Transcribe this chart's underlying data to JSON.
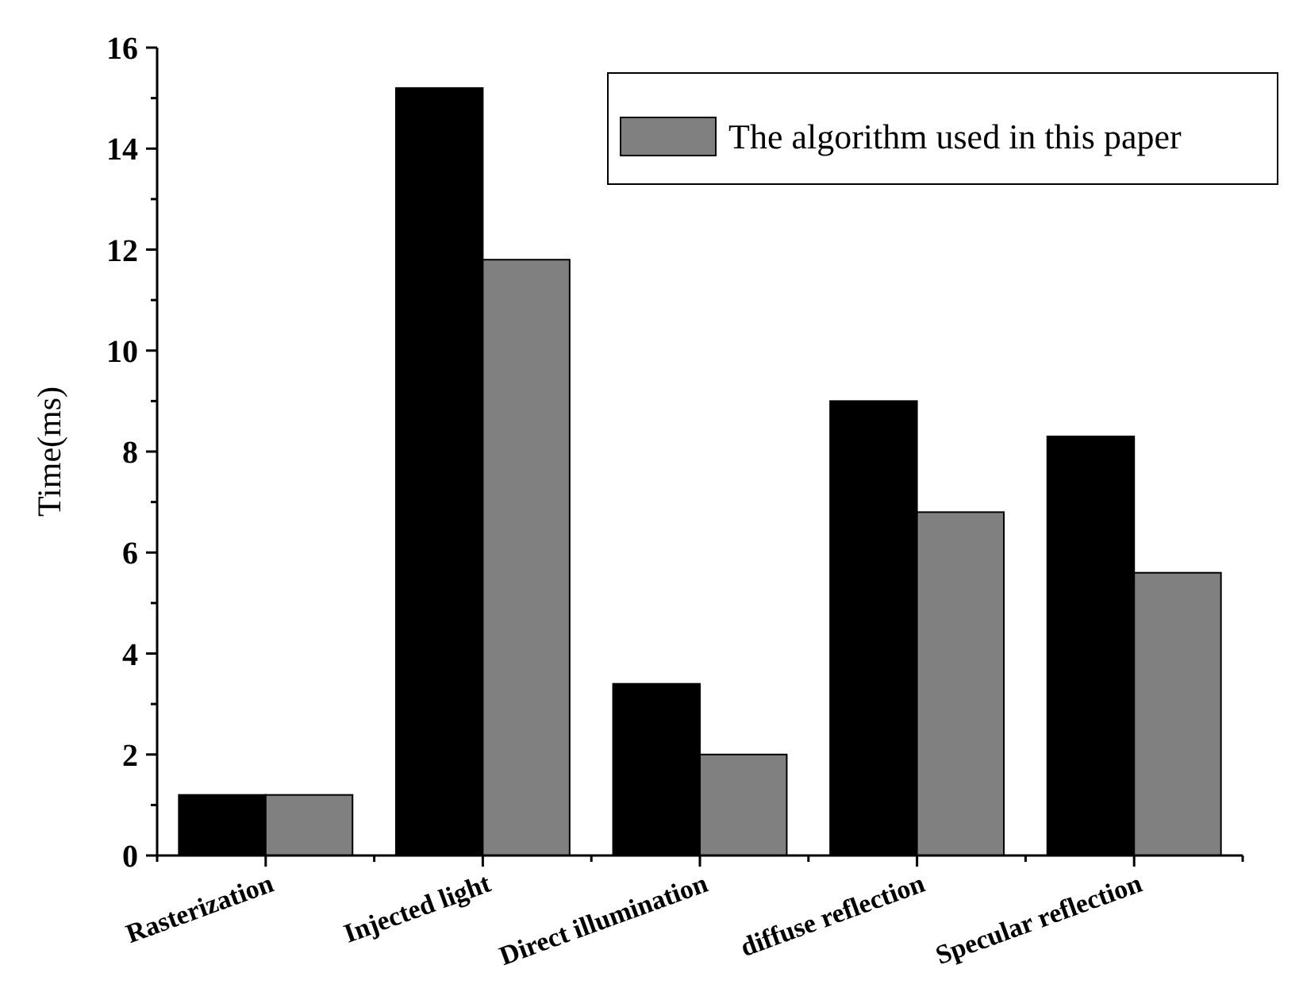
{
  "chart_data": {
    "type": "bar",
    "ylabel": "Time(ms)",
    "categories": [
      "Rasterization",
      "Injected light",
      "Direct illumination",
      "diffuse reflection",
      "Specular reflection"
    ],
    "series": [
      {
        "color": "#000000",
        "values": [
          1.2,
          15.2,
          3.4,
          9.0,
          8.3
        ]
      },
      {
        "name": "The algorithm used in this paper",
        "color": "#808080",
        "values": [
          1.2,
          11.8,
          2.0,
          6.8,
          5.6
        ]
      }
    ],
    "ylim": [
      0,
      16
    ],
    "yticks": [
      0,
      2,
      4,
      6,
      8,
      10,
      12,
      14,
      16
    ],
    "grid": false,
    "legend": "top right"
  }
}
